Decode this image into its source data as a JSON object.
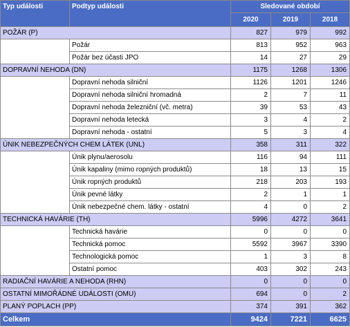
{
  "header": {
    "col_type": "Typ události",
    "col_subtype": "Podtyp události",
    "period": "Sledované období",
    "years": [
      "2020",
      "2019",
      "2018"
    ]
  },
  "rows": [
    {
      "kind": "cat",
      "label": "POŽÁR (P)",
      "values": [
        "827",
        "979",
        "992"
      ]
    },
    {
      "kind": "sub",
      "label": "Požár",
      "values": [
        "813",
        "952",
        "963"
      ]
    },
    {
      "kind": "sub",
      "label": "Požár bez účasti JPO",
      "values": [
        "14",
        "27",
        "29"
      ]
    },
    {
      "kind": "cat",
      "label": "DOPRAVNÍ NEHODA (DN)",
      "values": [
        "1175",
        "1268",
        "1306"
      ]
    },
    {
      "kind": "sub",
      "label": "Dopravní nehoda  silniční",
      "values": [
        "1126",
        "1201",
        "1246"
      ]
    },
    {
      "kind": "sub",
      "label": "Dopravní nehoda  silniční hromadná",
      "values": [
        "2",
        "7",
        "11"
      ]
    },
    {
      "kind": "sub",
      "label": "Dopravní nehoda  železniční (vč. metra)",
      "values": [
        "39",
        "53",
        "43"
      ]
    },
    {
      "kind": "sub",
      "label": "Dopravní nehoda  letecká",
      "values": [
        "3",
        "4",
        "2"
      ]
    },
    {
      "kind": "sub",
      "label": "Dopravní nehoda - ostatní",
      "values": [
        "5",
        "3",
        "4"
      ]
    },
    {
      "kind": "cat",
      "label": "ÚNIK  NEBEZPEČNÝCH CHEM LÁTEK (UNL)",
      "values": [
        "358",
        "311",
        "322"
      ]
    },
    {
      "kind": "sub",
      "label": "Únik plynu/aerosolu",
      "values": [
        "116",
        "94",
        "111"
      ]
    },
    {
      "kind": "sub",
      "label": "Únik kapaliny (mimo ropných produktů)",
      "values": [
        "18",
        "13",
        "15"
      ]
    },
    {
      "kind": "sub",
      "label": "Únik ropných produktů",
      "values": [
        "218",
        "203",
        "193"
      ]
    },
    {
      "kind": "sub",
      "label": "Únik pevné látky",
      "values": [
        "2",
        "1",
        "1"
      ]
    },
    {
      "kind": "sub",
      "label": "Únik nebezpečné chem. látky - ostatní",
      "values": [
        "4",
        "0",
        "2"
      ]
    },
    {
      "kind": "cat",
      "label": "TECHNICKÁ HAVÁRIE (TH)",
      "values": [
        "5996",
        "4272",
        "3641"
      ]
    },
    {
      "kind": "sub",
      "label": "Technická havárie",
      "values": [
        "0",
        "0",
        "0"
      ]
    },
    {
      "kind": "sub",
      "label": "Technická pomoc",
      "values": [
        "5592",
        "3967",
        "3390"
      ]
    },
    {
      "kind": "sub",
      "label": "Technologická pomoc",
      "values": [
        "1",
        "3",
        "8"
      ]
    },
    {
      "kind": "sub",
      "label": "Ostatní pomoc",
      "values": [
        "403",
        "302",
        "243"
      ]
    },
    {
      "kind": "cat",
      "label": "RADIAČNÍ HAVÁRIE A NEHODA (RHN)",
      "values": [
        "0",
        "0",
        "0"
      ]
    },
    {
      "kind": "cat",
      "label": "OSTATNÍ MIMOŘÁDNÉ UDÁLOSTI (OMU)",
      "values": [
        "694",
        "0",
        "2"
      ]
    },
    {
      "kind": "cat",
      "label": "PLANÝ POPLACH (PP)",
      "values": [
        "374",
        "391",
        "362"
      ]
    }
  ],
  "total": {
    "label": "Celkem",
    "values": [
      "9424",
      "7221",
      "6625"
    ]
  },
  "colors": {
    "header_blue": "#4a6cc4",
    "category_row": "#ccccf5",
    "border": "#8a8a8a"
  }
}
